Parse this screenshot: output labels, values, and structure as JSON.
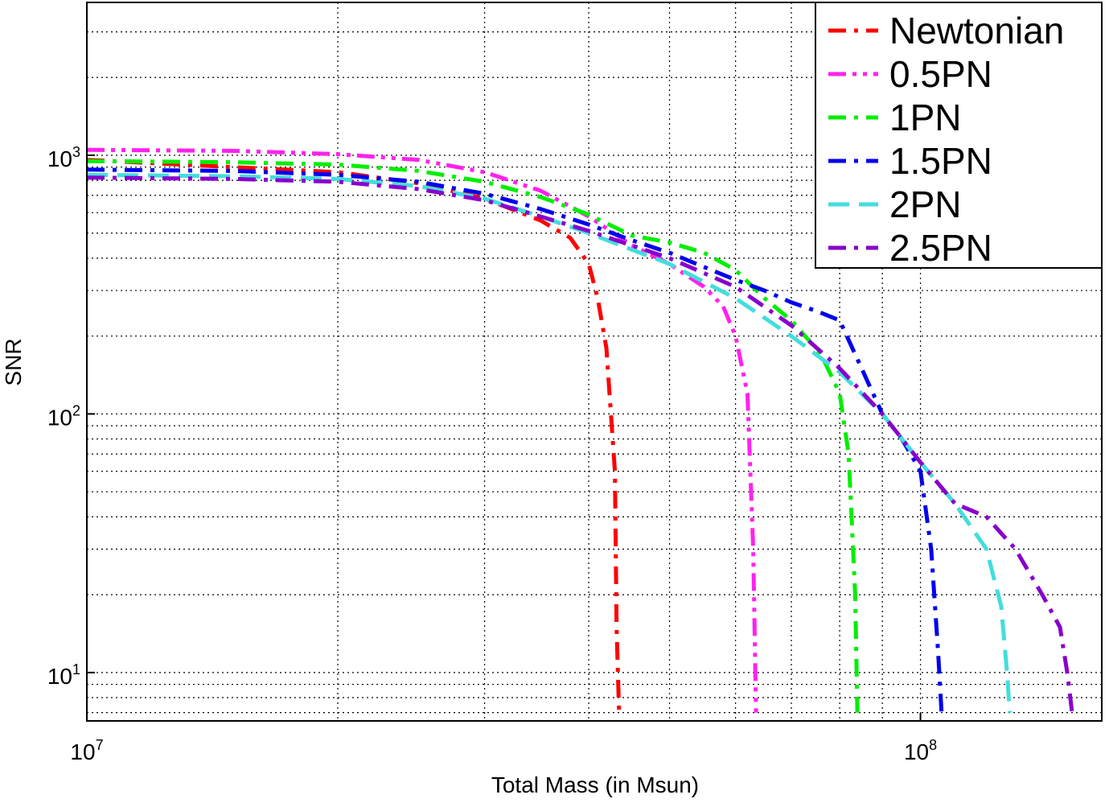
{
  "chart_data": {
    "type": "line",
    "title": "",
    "xlabel": "Total Mass (in Msun)",
    "ylabel": "SNR",
    "xscale": "log",
    "yscale": "log",
    "xlim": [
      10000000.0,
      165000000.0
    ],
    "ylim": [
      6.5,
      3900
    ],
    "grid": true,
    "legend_position": "top-right",
    "x_ticks": [
      {
        "base": "10",
        "exp": "7"
      },
      {
        "base": "10",
        "exp": "8"
      }
    ],
    "y_ticks": [
      {
        "base": "10",
        "exp": "1"
      },
      {
        "base": "10",
        "exp": "2"
      },
      {
        "base": "10",
        "exp": "3"
      }
    ],
    "series": [
      {
        "name": "Newtonian",
        "color": "#ff0000",
        "dash": "dashdot",
        "x": [
          10000000.0,
          15000000.0,
          20000000.0,
          25000000.0,
          30000000.0,
          35000000.0,
          38000000.0,
          40000000.0,
          41000000.0,
          42000000.0,
          43000000.0,
          43200000.0,
          43500000.0
        ],
        "y": [
          960,
          900,
          860,
          780,
          680,
          560,
          480,
          380,
          280,
          180,
          60,
          15,
          7
        ]
      },
      {
        "name": "0.5PN",
        "color": "#ff22ee",
        "dash": "dashdotdot",
        "x": [
          10000000.0,
          15000000.0,
          20000000.0,
          25000000.0,
          30000000.0,
          35000000.0,
          40000000.0,
          45000000.0,
          50000000.0,
          55000000.0,
          58000000.0,
          60000000.0,
          62000000.0,
          63000000.0,
          63500000.0
        ],
        "y": [
          1050,
          1040,
          1010,
          960,
          860,
          730,
          580,
          450,
          380,
          310,
          260,
          200,
          120,
          30,
          7
        ]
      },
      {
        "name": "1PN",
        "color": "#00ee00",
        "dash": "dashdot",
        "x": [
          10000000.0,
          15000000.0,
          20000000.0,
          25000000.0,
          30000000.0,
          35000000.0,
          40000000.0,
          45000000.0,
          50000000.0,
          55000000.0,
          60000000.0,
          65000000.0,
          70000000.0,
          76000000.0,
          80000000.0,
          82000000.0,
          83500000.0,
          84000000.0
        ],
        "y": [
          950,
          940,
          920,
          870,
          790,
          690,
          590,
          490,
          460,
          420,
          360,
          280,
          230,
          170,
          120,
          70,
          20,
          7
        ]
      },
      {
        "name": "1.5PN",
        "color": "#0000ee",
        "dash": "dashdot",
        "x": [
          10000000.0,
          15000000.0,
          20000000.0,
          25000000.0,
          30000000.0,
          35000000.0,
          40000000.0,
          45000000.0,
          50000000.0,
          55000000.0,
          60000000.0,
          65000000.0,
          70000000.0,
          75000000.0,
          80000000.0,
          85000000.0,
          90000000.0,
          95000000.0,
          100000000.0,
          103000000.0,
          105000000.0,
          106000000.0
        ],
        "y": [
          880,
          870,
          840,
          790,
          710,
          620,
          540,
          470,
          420,
          370,
          330,
          300,
          270,
          250,
          230,
          150,
          100,
          80,
          60,
          30,
          12,
          7
        ]
      },
      {
        "name": "2PN",
        "color": "#44dddd",
        "dash": "dash",
        "x": [
          10000000.0,
          15000000.0,
          20000000.0,
          25000000.0,
          30000000.0,
          35000000.0,
          40000000.0,
          50000000.0,
          60000000.0,
          70000000.0,
          80000000.0,
          90000000.0,
          100000000.0,
          110000000.0,
          120000000.0,
          125000000.0,
          127000000.0,
          128000000.0
        ],
        "y": [
          840,
          830,
          810,
          760,
          680,
          580,
          500,
          380,
          280,
          200,
          145,
          100,
          65,
          45,
          30,
          18,
          10,
          7
        ]
      },
      {
        "name": "2.5PN",
        "color": "#8800cc",
        "dash": "dashdot",
        "x": [
          10000000.0,
          15000000.0,
          20000000.0,
          25000000.0,
          30000000.0,
          35000000.0,
          40000000.0,
          50000000.0,
          60000000.0,
          70000000.0,
          80000000.0,
          90000000.0,
          100000000.0,
          110000000.0,
          120000000.0,
          130000000.0,
          140000000.0,
          147000000.0,
          150000000.0,
          152000000.0
        ],
        "y": [
          820,
          810,
          790,
          740,
          670,
          580,
          510,
          400,
          310,
          220,
          150,
          100,
          65,
          45,
          40,
          30,
          20,
          15,
          10,
          7
        ]
      }
    ]
  }
}
